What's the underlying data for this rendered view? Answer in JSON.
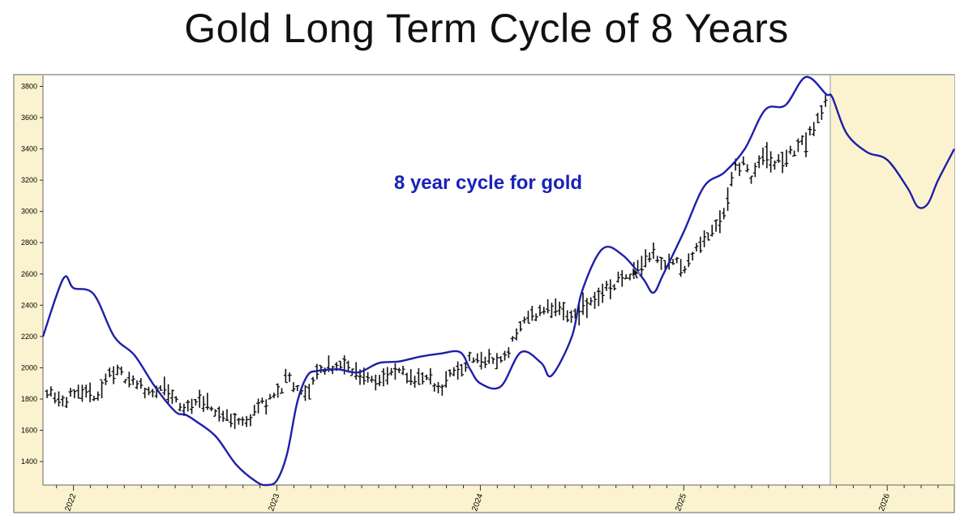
{
  "title": "Gold Long Term Cycle of 8 Years",
  "colors": {
    "cycle_line": "#1f1fa8",
    "price_bars": "#111111",
    "forecast_area": "#fbf3cf",
    "panel_border": "#555555"
  },
  "chart_data": {
    "type": "line",
    "title": "Gold Long Term Cycle of 8 Years",
    "annotation": "8 year cycle for gold",
    "xlabel": "",
    "ylabel": "",
    "xlim": [
      2021.85,
      2026.33
    ],
    "ylim": [
      1250,
      3870
    ],
    "x_tick_labels": [
      "2022",
      "2023",
      "2024",
      "2025",
      "2026"
    ],
    "y_tick_labels": [
      "1400",
      "1600",
      "1800",
      "2000",
      "2200",
      "2400",
      "2600",
      "2800",
      "3000",
      "3200",
      "3400",
      "3600",
      "3800"
    ],
    "forecast_start": 2025.72,
    "grid": false,
    "legend": "none",
    "series": [
      {
        "kind": "cycle-line",
        "x": [
          2021.85,
          2021.95,
          2022.0,
          2022.1,
          2022.2,
          2022.3,
          2022.4,
          2022.5,
          2022.55,
          2022.6,
          2022.7,
          2022.8,
          2022.9,
          2022.95,
          2023.0,
          2023.05,
          2023.1,
          2023.15,
          2023.2,
          2023.3,
          2023.4,
          2023.5,
          2023.6,
          2023.7,
          2023.8,
          2023.9,
          2023.95,
          2024.0,
          2024.1,
          2024.2,
          2024.3,
          2024.35,
          2024.45,
          2024.5,
          2024.6,
          2024.7,
          2024.8,
          2024.85,
          2024.9,
          2025.0,
          2025.1,
          2025.2,
          2025.3,
          2025.4,
          2025.5,
          2025.6,
          2025.7,
          2025.73,
          2025.8,
          2025.9,
          2026.0,
          2026.1,
          2026.15,
          2026.2,
          2026.25,
          2026.33
        ],
        "y": [
          2200,
          2570,
          2510,
          2470,
          2200,
          2080,
          1880,
          1720,
          1700,
          1660,
          1560,
          1380,
          1270,
          1250,
          1280,
          1450,
          1780,
          1950,
          1980,
          1990,
          1970,
          2030,
          2040,
          2070,
          2090,
          2100,
          1990,
          1900,
          1880,
          2100,
          2030,
          1950,
          2200,
          2490,
          2760,
          2720,
          2570,
          2480,
          2600,
          2870,
          3160,
          3250,
          3400,
          3650,
          3680,
          3860,
          3750,
          3730,
          3500,
          3380,
          3330,
          3150,
          3030,
          3050,
          3200,
          3400
        ]
      },
      {
        "kind": "weekly-price-path",
        "x": [
          2021.87,
          2021.95,
          2022.05,
          2022.12,
          2022.18,
          2022.25,
          2022.35,
          2022.45,
          2022.55,
          2022.6,
          2022.7,
          2022.8,
          2022.85,
          2022.9,
          2023.0,
          2023.05,
          2023.1,
          2023.15,
          2023.2,
          2023.3,
          2023.35,
          2023.4,
          2023.5,
          2023.6,
          2023.7,
          2023.75,
          2023.8,
          2023.85,
          2023.9,
          2023.95,
          2024.0,
          2024.1,
          2024.15,
          2024.2,
          2024.28,
          2024.35,
          2024.45,
          2024.55,
          2024.6,
          2024.7,
          2024.75,
          2024.8,
          2024.85,
          2024.9,
          2024.95,
          2025.0,
          2025.05,
          2025.1,
          2025.15,
          2025.2,
          2025.25,
          2025.3,
          2025.33,
          2025.38,
          2025.45,
          2025.5,
          2025.6,
          2025.65,
          2025.7
        ],
        "y": [
          1860,
          1800,
          1820,
          1830,
          1970,
          1950,
          1860,
          1850,
          1720,
          1800,
          1720,
          1660,
          1650,
          1750,
          1830,
          1930,
          1850,
          1820,
          1990,
          2010,
          2000,
          1960,
          1930,
          1970,
          1920,
          1930,
          1860,
          1950,
          1980,
          2070,
          2050,
          2040,
          2150,
          2280,
          2360,
          2380,
          2330,
          2420,
          2480,
          2570,
          2630,
          2680,
          2750,
          2670,
          2680,
          2650,
          2720,
          2820,
          2900,
          3000,
          3300,
          3300,
          3220,
          3350,
          3310,
          3340,
          3450,
          3550,
          3700
        ]
      }
    ]
  }
}
